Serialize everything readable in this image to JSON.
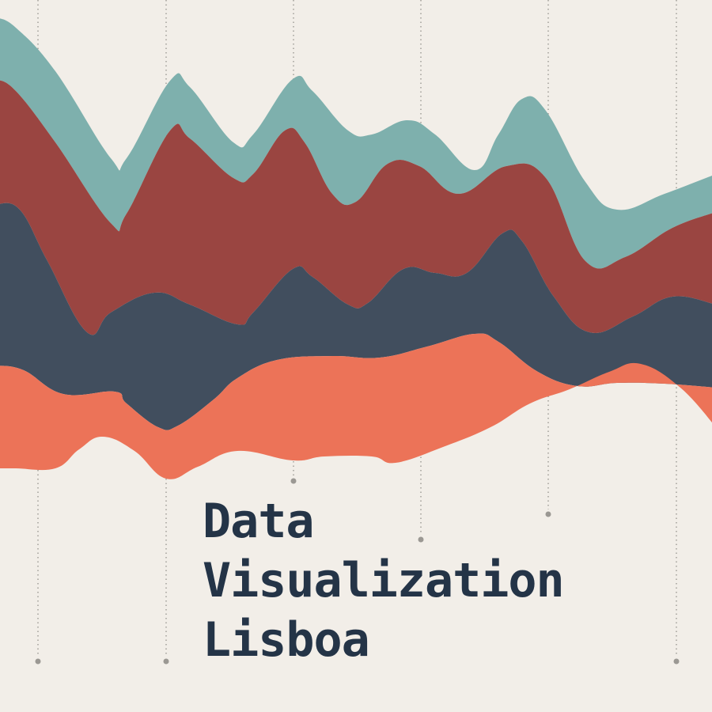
{
  "logo": {
    "title_lines": [
      "Data",
      "Visualization",
      "Lisboa"
    ]
  },
  "colors": {
    "background": "#f2eee8",
    "teal": "#7eb0ad",
    "red": "#9a4541",
    "navy": "#414e5e",
    "coral": "#ec7358",
    "text": "#243447",
    "guide": "#9b9893"
  }
}
